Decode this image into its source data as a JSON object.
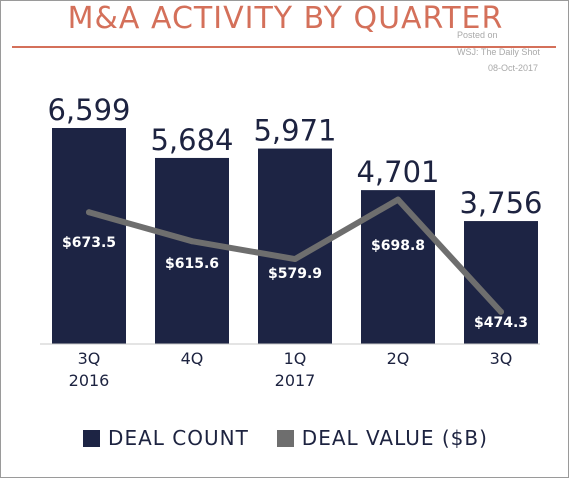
{
  "title": "M&A ACTIVITY BY QUARTER",
  "watermark": {
    "line1": "Posted on",
    "line2": "WSJ: The Daily Shot",
    "line3": "08-Oct-2017"
  },
  "colors": {
    "title": "#d4705a",
    "bars": "#1d2444",
    "line": "#6e6e6e",
    "text": "#1d2340"
  },
  "legend": {
    "deal_count": "DEAL COUNT",
    "deal_value": "DEAL VALUE ($B)"
  },
  "chart_data": {
    "type": "bar",
    "categories": [
      "3Q 2016",
      "4Q",
      "1Q 2017",
      "2Q",
      "3Q"
    ],
    "category_lines": [
      [
        "3Q",
        "2016"
      ],
      [
        "4Q"
      ],
      [
        "1Q",
        "2017"
      ],
      [
        "2Q"
      ],
      [
        "3Q"
      ]
    ],
    "series": [
      {
        "name": "DEAL COUNT",
        "type": "bar",
        "values": [
          6599,
          5684,
          5971,
          4701,
          3756
        ],
        "labels": [
          "6,599",
          "5,684",
          "5,971",
          "4,701",
          "3,756"
        ]
      },
      {
        "name": "DEAL VALUE ($B)",
        "type": "line",
        "values": [
          673.5,
          615.6,
          579.9,
          698.8,
          474.3
        ],
        "labels": [
          "$673.5",
          "$615.6",
          "$579.9",
          "$698.8",
          "$474.3"
        ]
      }
    ],
    "grid": false,
    "legend_position": "bottom"
  }
}
